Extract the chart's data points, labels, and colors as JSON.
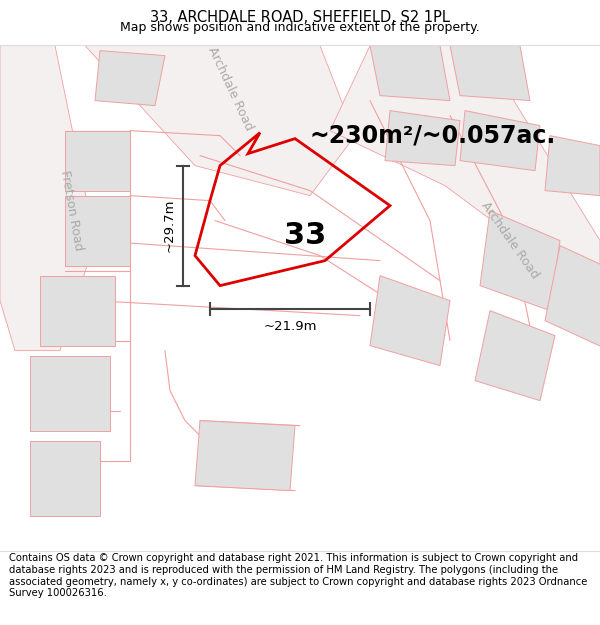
{
  "title_line1": "33, ARCHDALE ROAD, SHEFFIELD, S2 1PL",
  "title_line2": "Map shows position and indicative extent of the property.",
  "area_text": "~230m²/~0.057ac.",
  "label_33": "33",
  "dim_vertical": "~29.7m",
  "dim_horizontal": "~21.9m",
  "footer": "Contains OS data © Crown copyright and database right 2021. This information is subject to Crown copyright and database rights 2023 and is reproduced with the permission of HM Land Registry. The polygons (including the associated geometry, namely x, y co-ordinates) are subject to Crown copyright and database rights 2023 Ordnance Survey 100026316.",
  "map_bg": "#f7f7f7",
  "road_line_color": "#f0a0a0",
  "block_fill": "#e0e0e0",
  "block_edge": "#f0a0a0",
  "plot_edge_color": "#dd0000",
  "plot_edge_width": 2.0,
  "road_label_color": "#aaaaaa",
  "title_fontsize": 10.5,
  "subtitle_fontsize": 9,
  "area_fontsize": 17,
  "label33_fontsize": 22,
  "dim_fontsize": 9.5,
  "road_label_fontsize": 9,
  "footer_fontsize": 7.2
}
